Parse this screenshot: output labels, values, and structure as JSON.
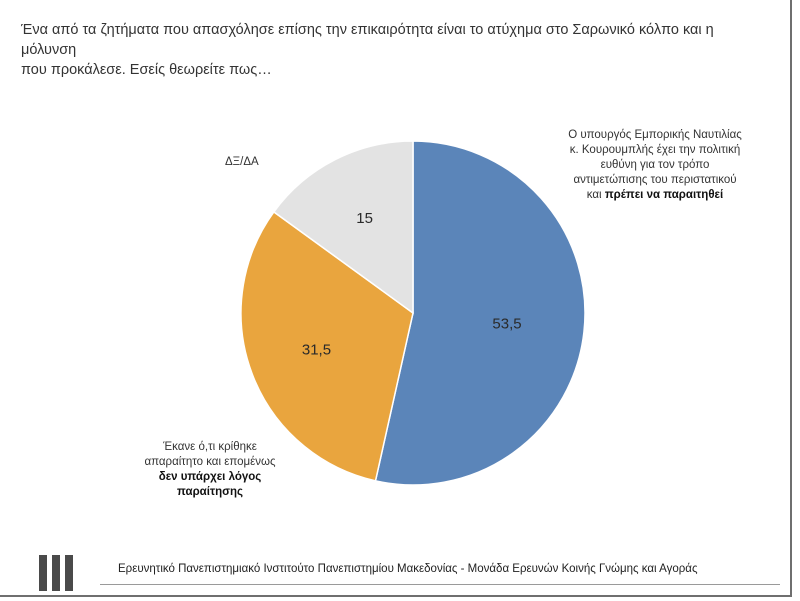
{
  "question": {
    "line1": "Ένα από τα ζητήματα που απασχόλησε επίσης την επικαιρότητα είναι το ατύχημα στο Σαρωνικό κόλπο και η μόλυνση",
    "line2": "που προκάλεσε. Εσείς θεωρείτε πως…"
  },
  "chart_data": {
    "type": "pie",
    "title": "",
    "start_angle_deg": 0,
    "direction": "clockwise",
    "slices": [
      {
        "label": "Ο υπουργός Εμπορικής Ναυτιλίας κ. Κουρουμπλής έχει την πολιτική ευθύνη για τον τρόπο αντιμετώπισης του περιστατικού και πρέπει να παραιτηθεί",
        "value": 53.5,
        "display": "53,5",
        "color": "#5b85b9"
      },
      {
        "label": "Έκανε ό,τι κρίθηκε απαραίτητο και επομένως δεν υπάρχει λόγος παραίτησης",
        "value": 31.5,
        "display": "31,5",
        "color": "#e9a53e"
      },
      {
        "label": "ΔΞ/ΔΑ",
        "value": 15,
        "display": "15",
        "color": "#e3e3e3"
      }
    ]
  },
  "annotations": {
    "blue_line1": "Ο υπουργός Εμπορικής Ναυτιλίας",
    "blue_line2": "κ. Κουρουμπλής έχει την πολιτική",
    "blue_line3": "ευθύνη για τον τρόπο",
    "blue_line4": "αντιμετώπισης του περιστατικού",
    "blue_line5_plain": "και ",
    "blue_line5_bold": "πρέπει να παραιτηθεί",
    "grey": "ΔΞ/ΔΑ",
    "orange_line1": "Έκανε ό,τι κρίθηκε",
    "orange_line2": "απαραίτητο και επομένως",
    "orange_line3_bold": "δεν υπάρχει λόγος",
    "orange_line4_bold": "παραίτησης"
  },
  "footer": {
    "text": "Ερευνητικό Πανεπιστημιακό Ινστιτούτο Πανεπιστημίου Μακεδονίας - Μονάδα Ερευνών Κοινής Γνώμης και Αγοράς"
  },
  "colors": {
    "blue": "#5b85b9",
    "orange": "#e9a53e",
    "grey": "#e3e3e3"
  },
  "logo": {
    "icon": "institute-logo-bars-icon"
  }
}
